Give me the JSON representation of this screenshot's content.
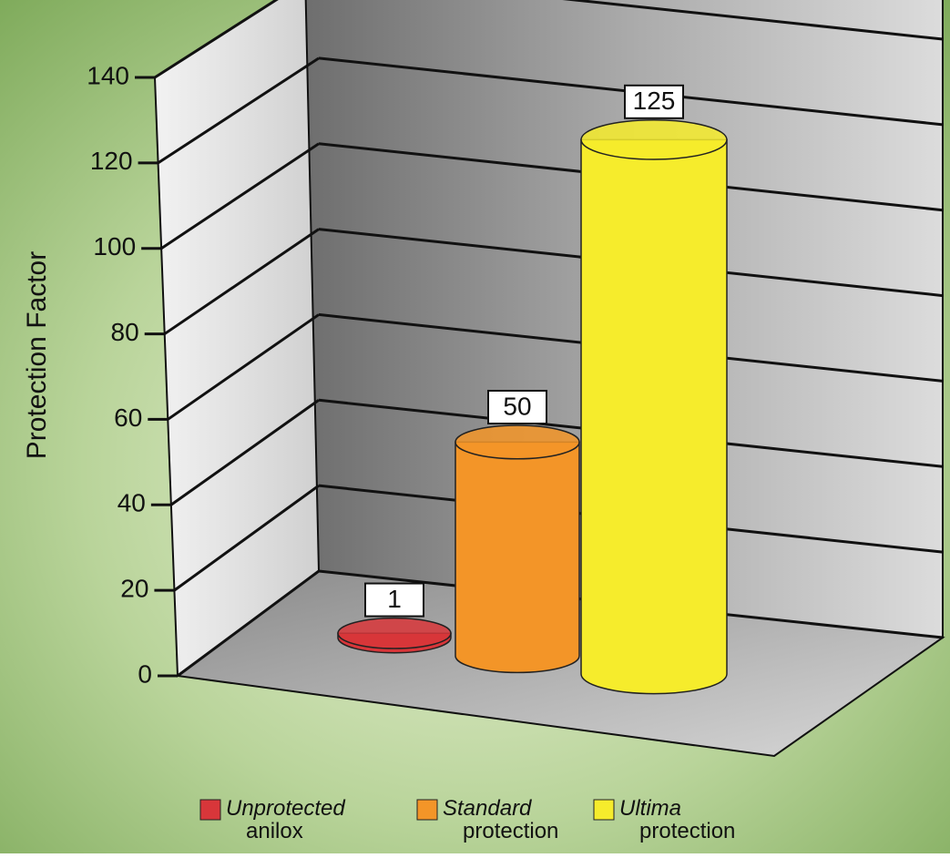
{
  "chart_data": {
    "type": "bar3d",
    "ylabel": "Protection Factor",
    "categories": [
      "Unprotected anilox",
      "Standard protection",
      "Ultima protection"
    ],
    "values": [
      1,
      50,
      125
    ],
    "colors": [
      "#d8363a",
      "#f39528",
      "#f6ec2c"
    ],
    "ylim": [
      0,
      140
    ],
    "yticks": [
      0,
      20,
      40,
      60,
      80,
      100,
      120,
      140
    ],
    "grid": true
  }
}
